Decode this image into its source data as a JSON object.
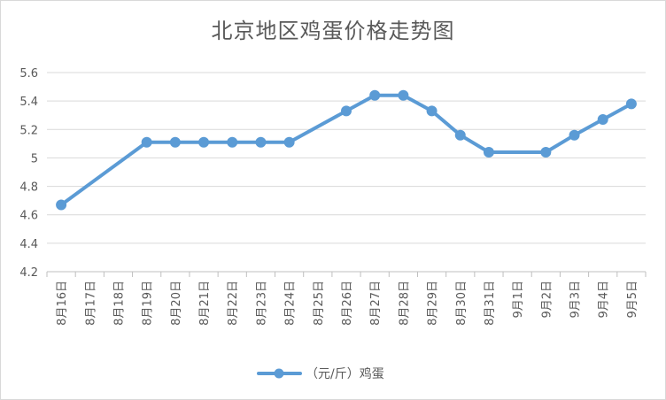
{
  "chart_data": {
    "type": "line",
    "title": "北京地区鸡蛋价格走势图",
    "categories": [
      "8月16日",
      "8月17日",
      "8月18日",
      "8月19日",
      "8月20日",
      "8月21日",
      "8月22日",
      "8月23日",
      "8月24日",
      "8月25日",
      "8月26日",
      "8月27日",
      "8月28日",
      "8月29日",
      "8月30日",
      "8月31日",
      "9月1日",
      "9月2日",
      "9月3日",
      "9月4日",
      "9月5日"
    ],
    "series": [
      {
        "name": "（元/斤）鸡蛋",
        "values": [
          4.67,
          null,
          null,
          5.11,
          5.11,
          5.11,
          5.11,
          5.11,
          5.11,
          null,
          5.33,
          5.44,
          5.44,
          5.33,
          5.16,
          5.04,
          null,
          5.04,
          5.16,
          5.27,
          5.38
        ],
        "color": "#5b9bd5"
      }
    ],
    "ylim": [
      4.2,
      5.6
    ],
    "yticks": [
      "4.2",
      "4.4",
      "4.6",
      "4.8",
      "5",
      "5.2",
      "5.4",
      "5.6"
    ],
    "grid": true,
    "legend": "bottom"
  }
}
